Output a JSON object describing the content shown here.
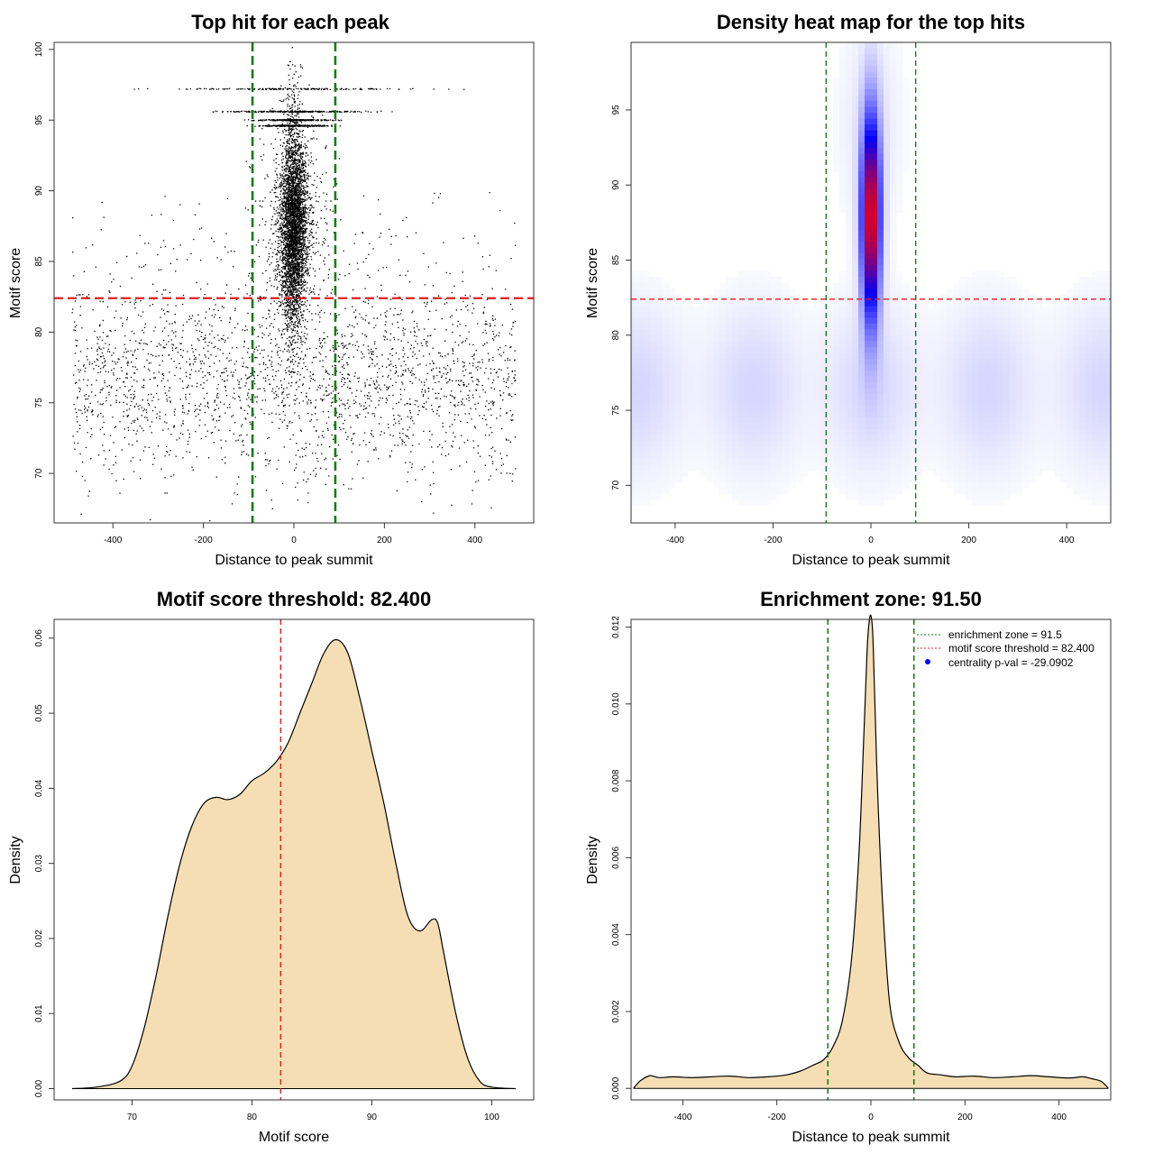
{
  "colors": {
    "threshold_line": "#e31a1c",
    "zone_line": "#1a7a1a",
    "fill": "#f5deb3",
    "points": "#000000",
    "heat_low": "#ffffff",
    "heat_mid": "#0000ff",
    "heat_high": "#ff0000",
    "legend_dot": "#0000ff"
  },
  "chart_data": [
    {
      "id": "scatter",
      "type": "scatter",
      "title": "Top hit for each peak",
      "xlabel": "Distance to peak summit",
      "ylabel": "Motif score",
      "xlim": [
        -530,
        530
      ],
      "ylim": [
        66.5,
        100.5
      ],
      "xticks": [
        -400,
        -200,
        0,
        200,
        400
      ],
      "yticks": [
        70,
        75,
        80,
        85,
        90,
        95,
        100
      ],
      "threshold": 82.4,
      "zone": [
        -91.5,
        91.5
      ],
      "point_generation": {
        "background_points": 2400,
        "background_x": [
          -490,
          490
        ],
        "background_y_mean": 76.5,
        "background_y_sd": 3.4,
        "central_points": 4200,
        "central_x_sd": 14,
        "central_y_mean": 87.5,
        "central_y_sd": 3.6,
        "band_levels": [
          97.2,
          95.6,
          95.0,
          94.6
        ],
        "band_points": 260
      }
    },
    {
      "id": "heatmap",
      "type": "heatmap",
      "title": "Density heat map for the top hits",
      "xlabel": "Distance to peak summit",
      "ylabel": "Motif score",
      "xlim": [
        -490,
        490
      ],
      "ylim": [
        67.5,
        99.5
      ],
      "xticks": [
        -400,
        -200,
        0,
        200,
        400
      ],
      "yticks": [
        70,
        75,
        80,
        85,
        90,
        95
      ],
      "threshold": 82.4,
      "zone": [
        -91.5,
        91.5
      ],
      "hotspot": {
        "x": 0,
        "y": 87.8,
        "x_sd": 13,
        "y_sd": 4.6
      },
      "background": {
        "y_mean": 76.5,
        "y_sd": 4,
        "level": 0.08
      }
    },
    {
      "id": "score-density",
      "type": "area",
      "title": "Motif score threshold: 82.400",
      "xlabel": "Motif score",
      "ylabel": "Density",
      "xlim": [
        63.5,
        103.5
      ],
      "ylim": [
        -0.0015,
        0.0625
      ],
      "xticks": [
        70,
        80,
        90,
        100
      ],
      "yticks": [
        0.0,
        0.01,
        0.02,
        0.03,
        0.04,
        0.05,
        0.06
      ],
      "ytick_labels": [
        "0.00",
        "0.01",
        "0.02",
        "0.03",
        "0.04",
        "0.05",
        "0.06"
      ],
      "threshold": 82.4,
      "x": [
        65,
        67,
        69,
        70,
        71,
        72,
        73,
        74,
        75,
        76,
        77,
        78,
        79,
        80,
        81,
        82,
        83,
        84,
        85,
        86,
        87,
        88,
        89,
        90,
        91,
        92,
        93,
        94,
        95,
        95.5,
        96,
        97,
        98,
        99,
        100,
        102
      ],
      "y": [
        0,
        0.0002,
        0.001,
        0.003,
        0.008,
        0.015,
        0.023,
        0.03,
        0.035,
        0.038,
        0.0388,
        0.0385,
        0.0392,
        0.041,
        0.042,
        0.0435,
        0.046,
        0.05,
        0.054,
        0.058,
        0.0598,
        0.058,
        0.052,
        0.045,
        0.038,
        0.03,
        0.023,
        0.021,
        0.0225,
        0.022,
        0.018,
        0.01,
        0.004,
        0.001,
        0.0002,
        0
      ]
    },
    {
      "id": "distance-density",
      "type": "area",
      "title": "Enrichment zone: 91.50",
      "xlabel": "Distance to peak summit",
      "ylabel": "Density",
      "xlim": [
        -510,
        510
      ],
      "ylim": [
        -0.0003,
        0.0122
      ],
      "xticks": [
        -400,
        -200,
        0,
        200,
        400
      ],
      "yticks": [
        0.0,
        0.002,
        0.004,
        0.006,
        0.008,
        0.01,
        0.012
      ],
      "ytick_labels": [
        "0.000",
        "0.002",
        "0.004",
        "0.006",
        "0.008",
        "0.010",
        "0.012"
      ],
      "zone": [
        -91.5,
        91.5
      ],
      "x": [
        -505,
        -490,
        -470,
        -450,
        -420,
        -380,
        -340,
        -300,
        -260,
        -220,
        -180,
        -150,
        -120,
        -100,
        -80,
        -60,
        -40,
        -25,
        -15,
        -8,
        -4,
        0,
        4,
        8,
        15,
        25,
        40,
        60,
        80,
        100,
        120,
        150,
        180,
        220,
        260,
        300,
        340,
        380,
        420,
        450,
        470,
        490,
        505
      ],
      "y": [
        0,
        0.0002,
        0.00033,
        0.00028,
        0.0003,
        0.00028,
        0.0003,
        0.00032,
        0.00028,
        0.0003,
        0.00035,
        0.00045,
        0.00062,
        0.00075,
        0.0011,
        0.0018,
        0.0035,
        0.0062,
        0.0092,
        0.0114,
        0.0121,
        0.0123,
        0.0118,
        0.0102,
        0.0075,
        0.0048,
        0.0022,
        0.0012,
        0.0008,
        0.0006,
        0.0004,
        0.00035,
        0.0003,
        0.00032,
        0.00028,
        0.0003,
        0.00033,
        0.0003,
        0.00027,
        0.0003,
        0.00025,
        0.00018,
        0
      ],
      "legend": [
        {
          "style": "dotted-green",
          "label": "enrichment zone = 91.5"
        },
        {
          "style": "dotted-red",
          "label": "motif score threshold = 82.400"
        },
        {
          "style": "blue-dot",
          "label": "centrality p-val = -29.0902"
        }
      ]
    }
  ]
}
